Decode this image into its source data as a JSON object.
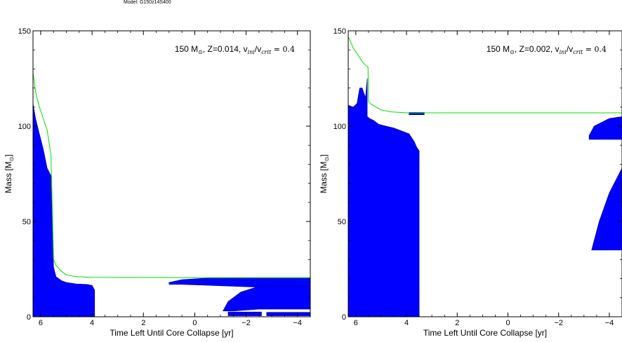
{
  "figure": {
    "model_label": "Model: G150z14S400"
  },
  "chart_data": [
    {
      "type": "area",
      "panel": "left",
      "annotation": "150 M⊙, Z=0.014, v_ini/v_crit = 0.4",
      "annotation_parts": [
        "150 M",
        "⊙",
        ", Z=0.014, v",
        "ini",
        "/v",
        "crit",
        " = 0.4"
      ],
      "xlabel": "Time Left Until Core Collapse [yr]",
      "ylabel": "Mass [M⊙]",
      "ylabel_parts": [
        "Mass [M",
        "⊙",
        "]"
      ],
      "x_scale": "log10 of time left (yr)",
      "xlim": [
        6.3,
        -4.5
      ],
      "ylim": [
        0,
        150
      ],
      "x_ticks": [
        6,
        4,
        2,
        0,
        -2,
        -4
      ],
      "x_tick_labels": [
        "6",
        "4",
        "2",
        "0",
        "−2",
        "−4"
      ],
      "y_ticks": [
        0,
        50,
        100,
        150
      ],
      "y_tick_labels": [
        "0",
        "50",
        "100",
        "150"
      ],
      "colors": {
        "convective_zone": "#0000ff",
        "total_mass_line": "#00e000",
        "he_core_line": "#000000"
      },
      "total_mass": {
        "x": [
          6.3,
          6.2,
          6.05,
          5.9,
          5.75,
          5.6,
          5.5,
          5.4,
          5.2,
          5.0,
          4.6,
          4.0,
          2.0,
          0.0,
          -2.0,
          -4.5
        ],
        "y": [
          128,
          118,
          110,
          104,
          98,
          85,
          30,
          27,
          24,
          22,
          21,
          20.7,
          20.6,
          20.5,
          20.5,
          20.5
        ]
      },
      "convective_regions": [
        {
          "x": [
            6.3,
            6.2,
            6.05,
            5.9,
            5.75,
            5.6,
            5.5,
            5.4,
            5.2,
            5.0,
            4.6,
            4.2,
            4.0,
            3.9,
            3.9,
            4.4,
            5.0,
            6.3
          ],
          "y_top": [
            112,
            104,
            96,
            88,
            78,
            74,
            26,
            21,
            19,
            18,
            17.2,
            17,
            16.5,
            14,
            0,
            0,
            0,
            0
          ]
        },
        {
          "x": [
            1.0,
            0.5,
            -0.5,
            -1.5,
            -2.5,
            -3.5,
            -4.5,
            -4.5,
            -3.5,
            -2.5,
            -1.5,
            -0.5,
            0.5,
            1.0
          ],
          "y": [
            18,
            19.5,
            20.3,
            20.3,
            20.3,
            20.3,
            20.3,
            16,
            15.5,
            15.5,
            16,
            16.5,
            17,
            17
          ]
        },
        {
          "x": [
            -1.1,
            -1.3,
            -1.8,
            -2.5,
            -3.5,
            -4.5,
            -4.5,
            -3.5,
            -2.5,
            -1.5,
            -1.1
          ],
          "y": [
            3,
            8,
            13,
            16,
            16,
            16,
            4,
            4,
            4,
            3,
            3
          ]
        },
        {
          "x": [
            -1.3,
            -2.6,
            -2.6,
            -1.3
          ],
          "y": [
            0.5,
            0.5,
            2.5,
            2.5
          ]
        },
        {
          "x": [
            -2.8,
            -4.5,
            -4.5,
            -2.8
          ],
          "y": [
            0.5,
            0.5,
            2.3,
            2.3
          ]
        }
      ]
    },
    {
      "type": "area",
      "panel": "right",
      "annotation": "150 M⊙, Z=0.002, v_ini/v_crit = 0.4",
      "annotation_parts": [
        "150 M",
        "⊙",
        ", Z=0.002, v",
        "ini",
        "/v",
        "crit",
        " = 0.4"
      ],
      "xlabel": "Time Left Until Core Collapse [yr]",
      "ylabel": "Mass [M⊙]",
      "ylabel_parts": [
        "Mass [M",
        "⊙",
        "]"
      ],
      "x_scale": "log10 of time left (yr)",
      "xlim": [
        6.3,
        -4.5
      ],
      "ylim": [
        0,
        150
      ],
      "x_ticks": [
        6,
        4,
        2,
        0,
        -2,
        -4
      ],
      "x_tick_labels": [
        "6",
        "4",
        "2",
        "0",
        "−2",
        "−4"
      ],
      "y_ticks": [
        0,
        50,
        100,
        150
      ],
      "y_tick_labels": [
        "0",
        "50",
        "100",
        "150"
      ],
      "colors": {
        "convective_zone": "#0000ff",
        "total_mass_line": "#00e000",
        "he_core_line": "#000000"
      },
      "total_mass": {
        "x": [
          6.3,
          6.1,
          5.9,
          5.7,
          5.52,
          5.5,
          5.4,
          5.2,
          5.0,
          4.6,
          4.0,
          2.0,
          0.0,
          -2.0,
          -4.5
        ],
        "y": [
          147,
          141,
          137,
          133,
          131,
          113,
          111.5,
          110,
          108.5,
          107.5,
          107,
          107,
          107,
          107,
          107
        ]
      },
      "convective_regions": [
        {
          "x": [
            6.3,
            6.1,
            5.95,
            5.85,
            5.75,
            5.62,
            5.55,
            5.55,
            5.45,
            5.3,
            5.1,
            4.8,
            4.5,
            4.2,
            3.9,
            3.7,
            3.6,
            3.5,
            3.5,
            4.5,
            5.5,
            6.3
          ],
          "y_top": [
            111,
            110,
            112,
            120,
            120,
            115,
            125,
            105,
            104,
            103,
            101,
            100,
            99,
            97.5,
            96,
            92,
            89,
            87,
            0,
            0,
            0,
            0
          ]
        },
        {
          "x": [
            3.9,
            3.3,
            3.3,
            3.9
          ],
          "y": [
            107.2,
            107.2,
            106,
            106
          ]
        },
        {
          "x": [
            -3.2,
            -3.4,
            -4.0,
            -4.5,
            -4.5,
            -3.2
          ],
          "y": [
            95,
            100,
            104,
            105,
            93,
            93
          ]
        },
        {
          "x": [
            -3.3,
            -3.6,
            -4.0,
            -4.5,
            -4.5,
            -3.3
          ],
          "y": [
            35,
            50,
            65,
            78,
            35,
            35
          ]
        }
      ]
    }
  ]
}
